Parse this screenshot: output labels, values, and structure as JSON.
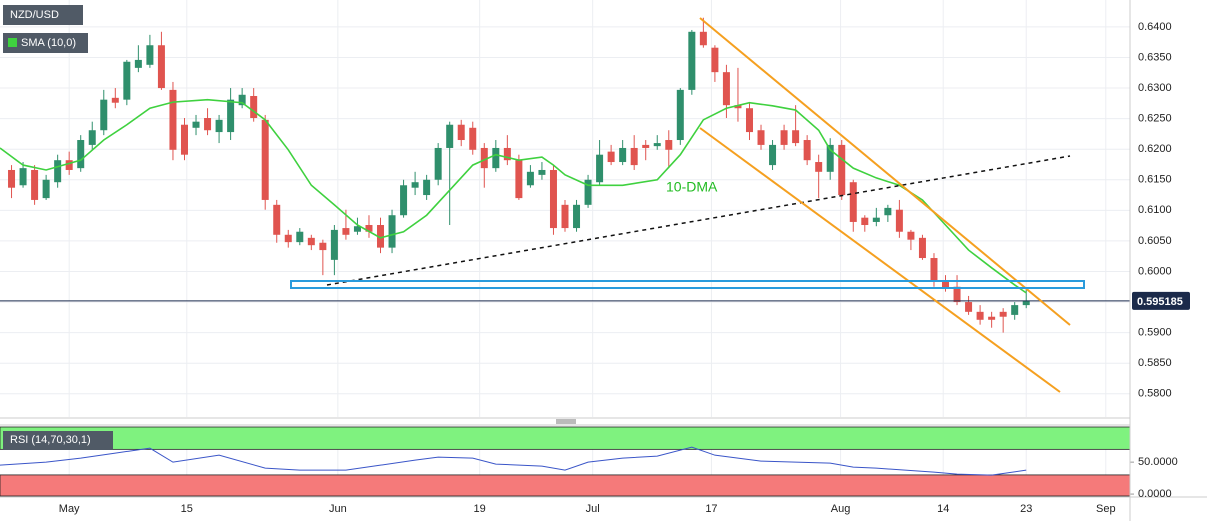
{
  "chart_data": [
    {
      "type": "candlestick",
      "title": "NZD/USD",
      "x": [
        0,
        1,
        2,
        3,
        4,
        5,
        6,
        7,
        8,
        9,
        10,
        11,
        12,
        13,
        14,
        15,
        16,
        17,
        18,
        19,
        20,
        21,
        22,
        23,
        24,
        25,
        26,
        27,
        28,
        29,
        30,
        31,
        32,
        33,
        34,
        35,
        36,
        37,
        38,
        39,
        40,
        41,
        42,
        43,
        44,
        45,
        46,
        47,
        48,
        49,
        50,
        51,
        52,
        53,
        54,
        55,
        56,
        57,
        58,
        59,
        60,
        61,
        62,
        63,
        64,
        65,
        66,
        67,
        68,
        69,
        70,
        71,
        72,
        73,
        74,
        75,
        76,
        77,
        78,
        79,
        80,
        81,
        82,
        83,
        84,
        85,
        86,
        87,
        88
      ],
      "open": [
        0.6166,
        0.6141,
        0.6166,
        0.612,
        0.6146,
        0.6182,
        0.6169,
        0.6207,
        0.6231,
        0.6284,
        0.6281,
        0.6333,
        0.6338,
        0.637,
        0.6297,
        0.624,
        0.6235,
        0.6251,
        0.6228,
        0.6228,
        0.6272,
        0.6287,
        0.6248,
        0.6109,
        0.606,
        0.6048,
        0.6055,
        0.6047,
        0.6019,
        0.6071,
        0.6065,
        0.6076,
        0.6076,
        0.6039,
        0.6092,
        0.6137,
        0.6125,
        0.615,
        0.6202,
        0.624,
        0.6235,
        0.6202,
        0.6169,
        0.6202,
        0.6182,
        0.6141,
        0.6158,
        0.6166,
        0.6109,
        0.6071,
        0.6109,
        0.6146,
        0.6196,
        0.6179,
        0.6202,
        0.6207,
        0.6205,
        0.6215,
        0.6215,
        0.6297,
        0.6392,
        0.6366,
        0.6326,
        0.6272,
        0.6267,
        0.6231,
        0.6174,
        0.6231,
        0.6231,
        0.6215,
        0.6179,
        0.6163,
        0.6207,
        0.6146,
        0.6088,
        0.6081,
        0.6092,
        0.6101,
        0.6065,
        0.6055,
        0.6022,
        0.5983,
        0.5975,
        0.595,
        0.5934,
        0.5926,
        0.5934,
        0.5929,
        0.5945
      ],
      "high": [
        0.6174,
        0.6179,
        0.6174,
        0.6158,
        0.6191,
        0.6196,
        0.6223,
        0.6245,
        0.6297,
        0.63,
        0.6346,
        0.637,
        0.6387,
        0.6392,
        0.631,
        0.6251,
        0.6256,
        0.6267,
        0.6256,
        0.63,
        0.63,
        0.63,
        0.6256,
        0.6117,
        0.6068,
        0.6071,
        0.606,
        0.6052,
        0.6076,
        0.6101,
        0.6088,
        0.6092,
        0.6088,
        0.6101,
        0.615,
        0.6163,
        0.6158,
        0.621,
        0.6245,
        0.6248,
        0.6245,
        0.621,
        0.6215,
        0.6223,
        0.6191,
        0.6174,
        0.6179,
        0.6174,
        0.6117,
        0.6117,
        0.6158,
        0.6215,
        0.6207,
        0.6215,
        0.6223,
        0.6215,
        0.6223,
        0.6231,
        0.63,
        0.6395,
        0.6415,
        0.637,
        0.6338,
        0.6333,
        0.6276,
        0.624,
        0.6215,
        0.624,
        0.6272,
        0.6223,
        0.6191,
        0.6218,
        0.6215,
        0.615,
        0.6092,
        0.6104,
        0.6109,
        0.6117,
        0.6068,
        0.606,
        0.603,
        0.5994,
        0.5994,
        0.596,
        0.5945,
        0.5934,
        0.594,
        0.595,
        0.597
      ],
      "low": [
        0.612,
        0.6137,
        0.6109,
        0.6117,
        0.6137,
        0.6158,
        0.6163,
        0.6199,
        0.6223,
        0.6267,
        0.6272,
        0.6326,
        0.6333,
        0.6297,
        0.6182,
        0.6182,
        0.6223,
        0.6223,
        0.621,
        0.6215,
        0.6267,
        0.6245,
        0.6101,
        0.6047,
        0.6039,
        0.6043,
        0.6035,
        0.5994,
        0.5994,
        0.6052,
        0.606,
        0.6055,
        0.603,
        0.603,
        0.6088,
        0.6125,
        0.6117,
        0.6141,
        0.6076,
        0.6205,
        0.6191,
        0.6137,
        0.6163,
        0.6174,
        0.6117,
        0.6137,
        0.615,
        0.606,
        0.6065,
        0.6065,
        0.6104,
        0.6141,
        0.6174,
        0.6174,
        0.6166,
        0.6182,
        0.6199,
        0.6169,
        0.6207,
        0.6289,
        0.6366,
        0.631,
        0.6251,
        0.6245,
        0.6215,
        0.6199,
        0.6166,
        0.6199,
        0.6205,
        0.6174,
        0.612,
        0.615,
        0.6117,
        0.6065,
        0.6065,
        0.6074,
        0.6081,
        0.6055,
        0.6035,
        0.6019,
        0.5975,
        0.5967,
        0.5945,
        0.5929,
        0.5913,
        0.5908,
        0.59,
        0.5921,
        0.594
      ],
      "close": [
        0.6137,
        0.6169,
        0.6117,
        0.615,
        0.6182,
        0.6166,
        0.6215,
        0.6231,
        0.6281,
        0.6276,
        0.6343,
        0.6346,
        0.637,
        0.63,
        0.6199,
        0.6191,
        0.6245,
        0.6231,
        0.6248,
        0.6281,
        0.6289,
        0.6251,
        0.6117,
        0.606,
        0.6048,
        0.6065,
        0.6043,
        0.6035,
        0.6068,
        0.606,
        0.6074,
        0.6065,
        0.6039,
        0.6092,
        0.6141,
        0.6146,
        0.615,
        0.6202,
        0.624,
        0.6215,
        0.6199,
        0.6169,
        0.6202,
        0.6182,
        0.612,
        0.6163,
        0.6166,
        0.6071,
        0.6071,
        0.6109,
        0.615,
        0.6191,
        0.6179,
        0.6202,
        0.6174,
        0.6202,
        0.621,
        0.6199,
        0.6297,
        0.6392,
        0.637,
        0.6326,
        0.6272,
        0.6267,
        0.6228,
        0.6207,
        0.6207,
        0.6207,
        0.621,
        0.6182,
        0.6163,
        0.6207,
        0.6125,
        0.6081,
        0.6076,
        0.6088,
        0.6104,
        0.6065,
        0.6052,
        0.6022,
        0.5983,
        0.5973,
        0.595,
        0.5934,
        0.5921,
        0.5921,
        0.5926,
        0.5945,
        0.5952
      ],
      "up_color": "#2f8f6c",
      "down_color": "#e0544f",
      "overlay": {
        "name": "SMA (10,0)",
        "color": "#3fd13f",
        "x": [
          -1,
          1,
          3,
          6,
          8,
          10,
          12,
          14,
          17,
          20,
          22,
          24,
          26,
          28,
          30,
          32,
          34,
          36,
          38,
          40,
          42,
          44,
          46,
          47,
          48,
          50,
          53,
          56,
          58,
          60,
          62,
          64,
          66,
          68,
          70,
          71,
          73,
          75,
          77,
          79,
          81,
          83,
          85,
          87,
          88
        ],
        "values": [
          0.6202,
          0.6174,
          0.6166,
          0.6182,
          0.6215,
          0.624,
          0.6267,
          0.6277,
          0.6281,
          0.6276,
          0.6248,
          0.6199,
          0.6141,
          0.6109,
          0.6076,
          0.6055,
          0.6065,
          0.6092,
          0.6133,
          0.6174,
          0.6191,
          0.6182,
          0.6187,
          0.6174,
          0.6158,
          0.6141,
          0.6141,
          0.615,
          0.6191,
          0.6248,
          0.6267,
          0.6276,
          0.6271,
          0.6264,
          0.6231,
          0.6199,
          0.6169,
          0.6153,
          0.6141,
          0.6117,
          0.6076,
          0.6035,
          0.6006,
          0.5978,
          0.5965
        ]
      },
      "annotation": "10-DMA",
      "last_price": 0.595185,
      "xlim": [
        -1,
        97
      ],
      "ylim": [
        0.5762,
        0.6444
      ],
      "yticks": [
        {
          "value": 0.58,
          "label": "0.5800"
        },
        {
          "value": 0.585,
          "label": "0.5850"
        },
        {
          "value": 0.59,
          "label": "0.5900"
        },
        {
          "value": 0.595,
          "label": "0.5950"
        },
        {
          "value": 0.6,
          "label": "0.6000"
        },
        {
          "value": 0.605,
          "label": "0.6050"
        },
        {
          "value": 0.61,
          "label": "0.6100"
        },
        {
          "value": 0.615,
          "label": "0.6150"
        },
        {
          "value": 0.62,
          "label": "0.6200"
        },
        {
          "value": 0.625,
          "label": "0.6250"
        },
        {
          "value": 0.63,
          "label": "0.6300"
        },
        {
          "value": 0.635,
          "label": "0.6350"
        },
        {
          "value": 0.64,
          "label": "0.6400"
        }
      ],
      "xticks": [
        {
          "value": 5.0,
          "label": "May"
        },
        {
          "value": 15.2,
          "label": "15"
        },
        {
          "value": 28.3,
          "label": "Jun"
        },
        {
          "value": 40.6,
          "label": "19"
        },
        {
          "value": 50.4,
          "label": "Jul"
        },
        {
          "value": 60.7,
          "label": "17"
        },
        {
          "value": 71.9,
          "label": "Aug"
        },
        {
          "value": 80.8,
          "label": "14"
        },
        {
          "value": 88.0,
          "label": "23"
        },
        {
          "value": 94.9,
          "label": "Sep"
        }
      ],
      "grid": true
    },
    {
      "type": "line",
      "title": "RSI (14,70,30,1)",
      "color": "#3a55c8",
      "x": [
        -1,
        3,
        6,
        9,
        12,
        14,
        18,
        22,
        25,
        29,
        32,
        35,
        37,
        40,
        42,
        46,
        48,
        50,
        53,
        56,
        59,
        61,
        65,
        68,
        71,
        73,
        75,
        80,
        82,
        85,
        88
      ],
      "values": [
        45.3,
        50,
        56.3,
        64.1,
        71.9,
        50,
        60.9,
        40.6,
        37.5,
        37.5,
        45.3,
        53.1,
        57.8,
        56.3,
        46.9,
        43.8,
        37.5,
        50,
        56.3,
        59.4,
        73.4,
        60.9,
        51.6,
        50,
        48.4,
        42.2,
        40.6,
        34.4,
        31.3,
        29.7,
        37.5
      ],
      "upper_band": 70,
      "lower_band": 30,
      "upper_color": "#7ff27f",
      "lower_color": "#f57a7a",
      "ylim": [
        -3,
        105
      ],
      "yticks": [
        {
          "value": 0,
          "label": "0.0000"
        },
        {
          "value": 50,
          "label": "50.0000"
        }
      ]
    }
  ]
}
